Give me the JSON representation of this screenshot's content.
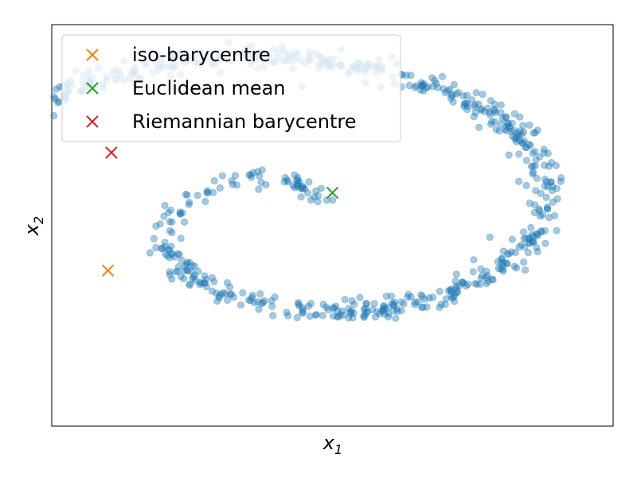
{
  "chart_data": {
    "type": "scatter",
    "title": "",
    "xlabel": {
      "base": "x",
      "sub": "1"
    },
    "ylabel": {
      "base": "x",
      "sub": "2"
    },
    "xticks": [],
    "yticks": [],
    "xlim": [
      -8,
      8
    ],
    "ylim": [
      -8,
      8
    ],
    "grid": false,
    "legend_position": "upper-left",
    "colors": {
      "points": "#1f77b4",
      "iso_barycentre": "#ff7f0e",
      "euclidean_mean": "#2ca02c",
      "riemannian_barycentre": "#d62728"
    },
    "series": [
      {
        "kind": "points",
        "spiral": {
          "turns_start": 0.0,
          "turns_end": 1.5,
          "n": 900,
          "a": 0.55,
          "b": 1.25,
          "noise": 0.18
        },
        "alpha": 0.4
      },
      {
        "name": "iso-barycentre",
        "kind": "marker",
        "x": -6.4,
        "y": -1.8
      },
      {
        "name": "Euclidean mean",
        "kind": "marker",
        "x": 0.0,
        "y": 1.3
      },
      {
        "name": "Riemannian barycentre",
        "kind": "marker",
        "x": -6.3,
        "y": 2.9
      }
    ]
  }
}
